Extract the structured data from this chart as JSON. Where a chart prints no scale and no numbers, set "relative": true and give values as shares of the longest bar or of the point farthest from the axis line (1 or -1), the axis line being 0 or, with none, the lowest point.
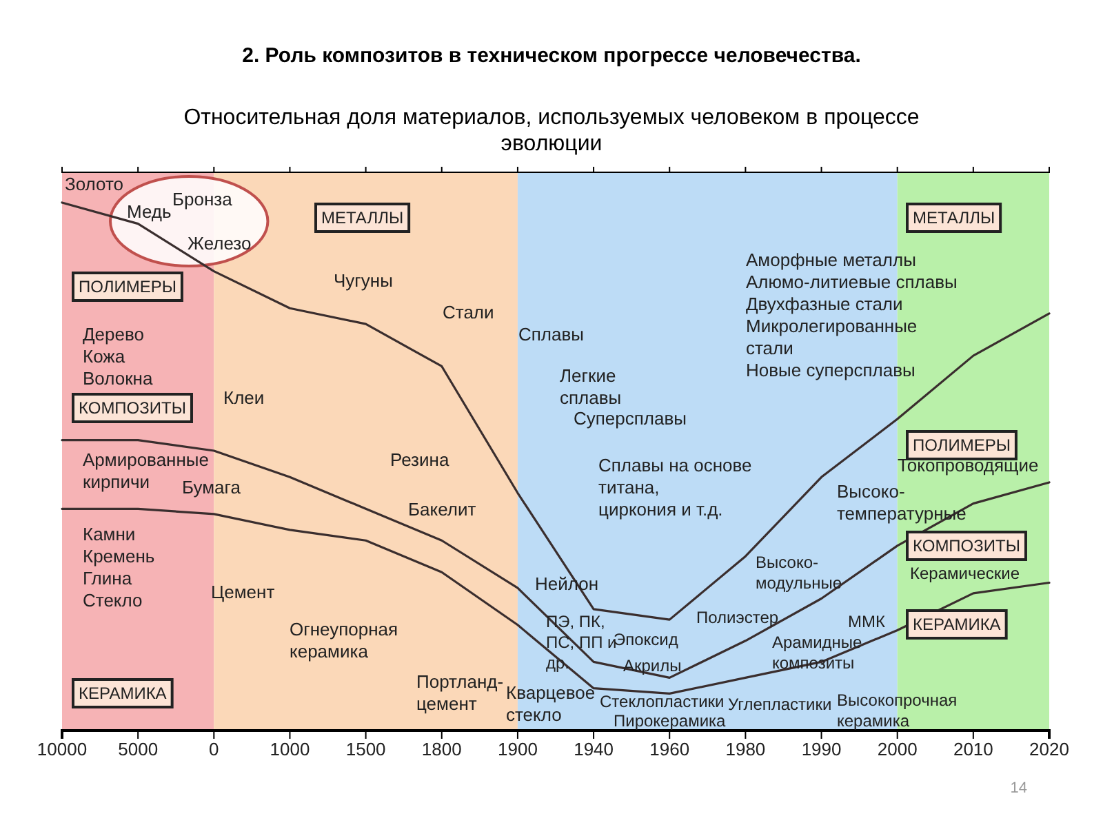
{
  "chart_data": {
    "type": "line",
    "relative": true,
    "title": "2. Роль композитов в техническом прогрессе человечества.",
    "subtitle": "Относительная доля материалов, используемых человеком в процессе эволюции",
    "categories": [
      "10000",
      "5000",
      "0",
      "1000",
      "1500",
      "1800",
      "1900",
      "1940",
      "1960",
      "1980",
      "1990",
      "2000",
      "2010",
      "2020"
    ],
    "bands": [
      {
        "axis": "x",
        "from": "10000",
        "to": "0",
        "color": "#f6b3b5"
      },
      {
        "axis": "x",
        "from": "0",
        "to": "1900",
        "color": "#fbd8b8"
      },
      {
        "axis": "x",
        "from": "1900",
        "to": "2000",
        "color": "#bddcf6"
      },
      {
        "axis": "x",
        "from": "2000",
        "to": "2020",
        "color": "#b9f0a9"
      }
    ],
    "series": [
      {
        "color": "#3a2e2e",
        "values": [
          1.0,
          0.96,
          0.87,
          0.8,
          0.77,
          0.69,
          0.45,
          0.23,
          0.21,
          0.33,
          0.48,
          0.59,
          0.71,
          0.79
        ]
      },
      {
        "color": "#3a2e2e",
        "values": [
          0.55,
          0.55,
          0.53,
          0.48,
          0.42,
          0.36,
          0.27,
          0.13,
          0.1,
          0.17,
          0.25,
          0.35,
          0.43,
          0.47
        ]
      },
      {
        "color": "#3a2e2e",
        "values": [
          0.42,
          0.42,
          0.41,
          0.38,
          0.36,
          0.3,
          0.2,
          0.08,
          0.07,
          0.1,
          0.13,
          0.19,
          0.26,
          0.28
        ]
      }
    ],
    "annotations": [
      "МЕТАЛЛЫ",
      "МЕТАЛЛЫ",
      "ПОЛИМЕРЫ",
      "ПОЛИМЕРЫ",
      "КОМПОЗИТЫ",
      "КОМПОЗИТЫ",
      "КЕРАМИКА",
      "КЕРАМИКА",
      "Медь",
      "Бронза",
      "Железо",
      "Золото",
      "Чугуны",
      "Стали",
      "Клеи",
      "Резина",
      "Бумага",
      "Бакелит",
      "Цемент",
      "Нейлон",
      "Огнеупорная\nкерамика",
      "Портланд-\nцемент",
      "Кварцевое\nстекло",
      "Дерево\nКожа\nВолокна",
      "Армированные\nкирпичи",
      "Камни\nКремень\nГлина\nСтекло",
      "Сплавы",
      "Легкие\nсплавы",
      "Суперсплавы",
      "Сплавы на основе\nтитана,\nциркония и т.д.",
      "Аморфные металлы\nАлюмо-литиевые сплавы\nДвухфазные стали\nМикролегированные\nстали\nНовые суперсплавы",
      "Высоко-\nмодульные",
      "Полиэстер",
      "Эпоксид",
      "Акрилы",
      "ПЭ, ПК,\nПС, ПП и\nдр.",
      "Арамидные\nкомпозиты",
      "Углепластики",
      "Стеклопластики",
      "Пирокерамика",
      "ММК",
      "Высокопрочная\nкерамика",
      "Керамические",
      "Токопроводящие",
      "Высоко-\nтемпературные",
      "14"
    ]
  }
}
